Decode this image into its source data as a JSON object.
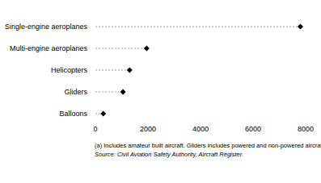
{
  "chart_data": {
    "type": "dot",
    "orientation": "horizontal",
    "categories": [
      "Single-engine aeroplanes",
      "Multi-engine aeroplanes",
      "Helicopters",
      "Gliders",
      "Balloons"
    ],
    "values": [
      7800,
      1950,
      1300,
      1050,
      300
    ],
    "color": "#000000",
    "marker": "diamond",
    "line_style": "dashed",
    "xlim": [
      0,
      8000
    ],
    "xticks": [
      0,
      2000,
      4000,
      6000,
      8000
    ],
    "grid": false,
    "annotations": [
      "(a) Includes amateur built aircraft. Gliders includes powered and non-powered aircraft.",
      "Source: Civil Aviation Safety Authority, Aircraft Register."
    ]
  }
}
